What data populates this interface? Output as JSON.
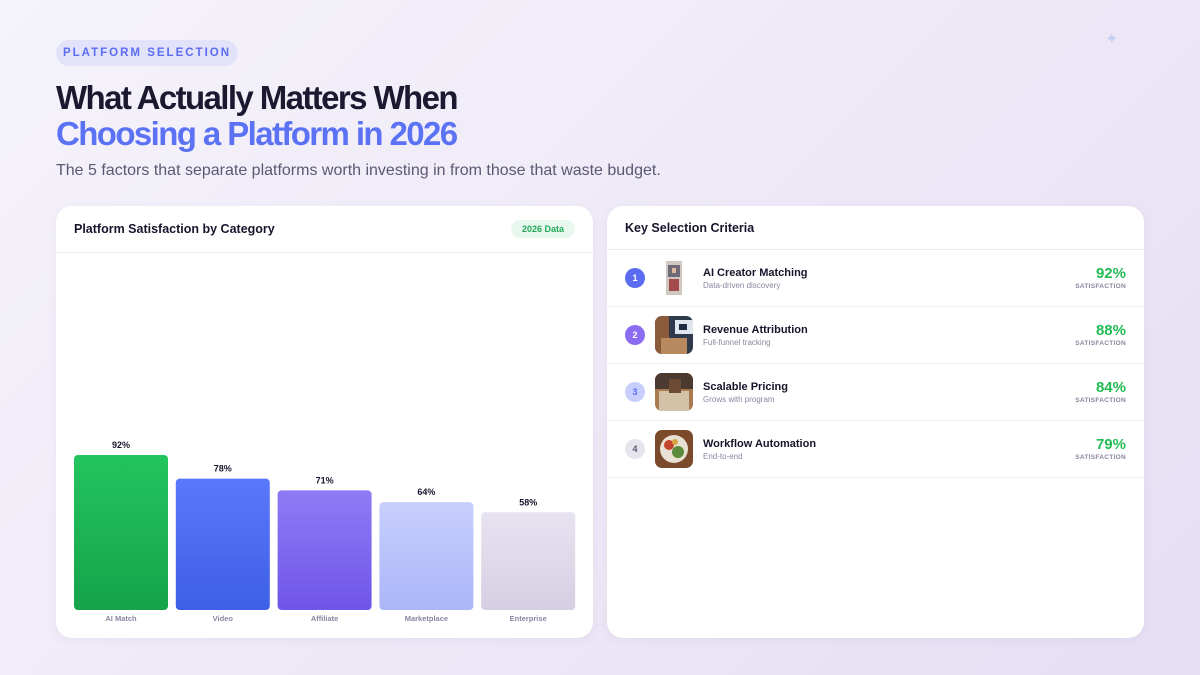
{
  "colors": {
    "background": "#f2eef9",
    "accent_blue": "#5b72f5",
    "success_green": "#22bb55",
    "headline_dark": "#1b1830"
  },
  "header": {
    "eyebrow": "PLATFORM SELECTION",
    "headline_line1": "What Actually Matters When",
    "headline_line2": "Choosing a Platform in 2026",
    "subtitle": "The 5 factors that separate platforms worth investing in from those that waste budget."
  },
  "left_card": {
    "title": "Platform Satisfaction by Category",
    "badge": "2026 Data"
  },
  "chart_data": {
    "type": "bar",
    "title": "Platform Satisfaction by Category",
    "categories": [
      "AI Match",
      "Video",
      "Affiliate",
      "Marketplace",
      "Enterprise"
    ],
    "values": [
      92,
      78,
      71,
      64,
      58
    ],
    "value_labels": [
      "92%",
      "78%",
      "71%",
      "64%",
      "58%"
    ],
    "unit": "%",
    "ylim": [
      0,
      100
    ],
    "grid": false,
    "legend": "none",
    "bar_colors": [
      [
        "#22c55e",
        "#16a34a"
      ],
      [
        "#5a78fb",
        "#3d5fe6"
      ],
      [
        "#8f7bf5",
        "#6f55e8"
      ],
      [
        "#c7cffc",
        "#aab6f8"
      ],
      [
        "#e7e2f0",
        "#d6cfe3"
      ]
    ]
  },
  "right_card": {
    "title": "Key Selection Criteria",
    "items": [
      {
        "num": "1",
        "title": "AI Creator Matching",
        "subtitle": "Data-driven discovery",
        "pct": "92%",
        "unit": "SATISFACTION",
        "num_bg": "#5b6cf0",
        "num_fg": "#ffffff",
        "thumb_icon": "photo-thumbnail-icon"
      },
      {
        "num": "2",
        "title": "Revenue Attribution",
        "subtitle": "Full-funnel tracking",
        "pct": "88%",
        "unit": "SATISFACTION",
        "num_bg": "#8b6cf2",
        "num_fg": "#ffffff",
        "thumb_icon": "photo-thumbnail-icon"
      },
      {
        "num": "3",
        "title": "Scalable Pricing",
        "subtitle": "Grows with program",
        "pct": "84%",
        "unit": "SATISFACTION",
        "num_bg": "#c9cffc",
        "num_fg": "#5b6cf0",
        "thumb_icon": "photo-thumbnail-icon"
      },
      {
        "num": "4",
        "title": "Workflow Automation",
        "subtitle": "End-to-end",
        "pct": "79%",
        "unit": "SATISFACTION",
        "num_bg": "#e7e4ee",
        "num_fg": "#5c5872",
        "thumb_icon": "photo-thumbnail-icon"
      }
    ]
  }
}
